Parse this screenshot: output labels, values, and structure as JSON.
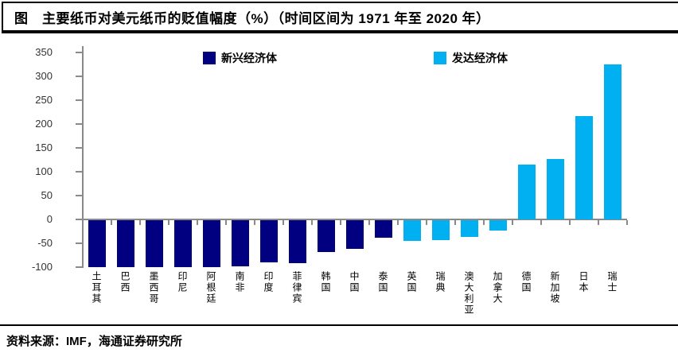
{
  "title": "图　主要纸币对美元纸币的贬值幅度（%）（时间区间为 1971 年至 2020 年）",
  "source": "资料来源：IMF，海通证券研究所",
  "colors": {
    "emerging": "#000080",
    "developed": "#00B0F0",
    "axis": "#8a8a8a"
  },
  "chart_data": {
    "type": "bar",
    "title": "主要纸币对美元纸币的贬值幅度（%）（时间区间为 1971 年至 2020 年）",
    "categories": [
      "土耳其",
      "巴西",
      "墨西哥",
      "印尼",
      "阿根廷",
      "南非",
      "印度",
      "菲律宾",
      "韩国",
      "中国",
      "泰国",
      "英国",
      "瑞典",
      "澳大利亚",
      "加拿大",
      "德国",
      "新加坡",
      "日本",
      "瑞士"
    ],
    "series": [
      {
        "name": "新兴经济体",
        "color": "#000080",
        "values": [
          -100,
          -100,
          -100,
          -100,
          -100,
          -99,
          -90,
          -92,
          -68,
          -62,
          -38,
          null,
          null,
          null,
          null,
          null,
          null,
          null,
          null
        ]
      },
      {
        "name": "发达经济体",
        "color": "#00B0F0",
        "values": [
          null,
          null,
          null,
          null,
          null,
          null,
          null,
          null,
          null,
          null,
          null,
          -45,
          -43,
          -36,
          -23,
          115,
          127,
          217,
          325
        ]
      }
    ],
    "xlabel": "",
    "ylabel": "",
    "ylim": [
      -100,
      350
    ],
    "yticks": [
      350,
      300,
      250,
      200,
      150,
      100,
      50,
      0,
      -50,
      -100
    ],
    "grid": false,
    "legend_position": "top"
  }
}
